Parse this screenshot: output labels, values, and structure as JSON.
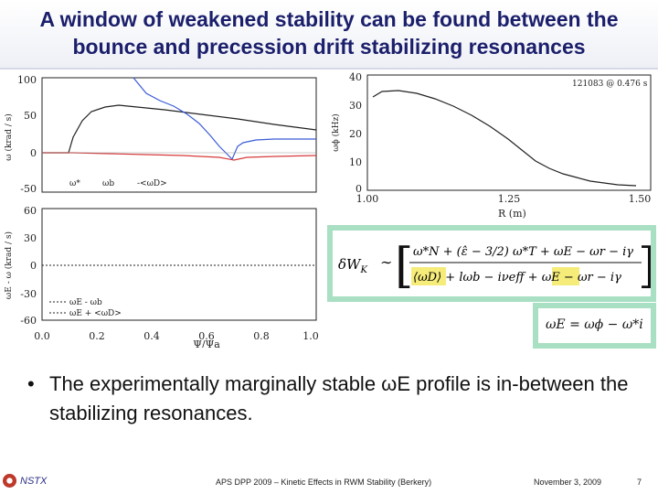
{
  "title": {
    "line1": "A window of weakened stability can be found between the",
    "line2": "bounce and precession drift stabilizing resonances"
  },
  "figure_left": {
    "top_plot": {
      "ylabel": "ω (krad / s)",
      "yticks": [
        "100",
        "50",
        "0",
        "-50"
      ],
      "legend": [
        "ω*",
        "ωb",
        "-<ωD>"
      ]
    },
    "bottom_plot": {
      "ylabel": "ωE - ω (krad / s)",
      "yticks": [
        "60",
        "30",
        "0",
        "-30",
        "-60"
      ],
      "legend": [
        "ωE - ωb",
        "ωE + <ωD>"
      ],
      "xticks": [
        "0.0",
        "0.2",
        "0.4",
        "0.6",
        "0.8",
        "1.0"
      ],
      "xlabel": "Ψ/Ψa"
    }
  },
  "figure_right": {
    "shot_label": "121083 @ 0.476 s",
    "ylabel": "ωϕ (kHz)",
    "yticks": [
      "40",
      "30",
      "20",
      "10",
      "0"
    ],
    "xticks": [
      "1.00",
      "1.25",
      "1.50"
    ],
    "xlabel": "R (m)"
  },
  "equation_main": {
    "lhs": "δW",
    "lhs_sub": "K",
    "sim": "∼",
    "row1": "ω*N + (ε̂ − 3/2) ω*T + ωE − ωr − iγ",
    "row2_a": "⟨ωD⟩",
    "row2_b": " + lωb − iνeff + ",
    "row2_c": "ωE",
    "row2_d": " − ωr − iγ"
  },
  "equation_omegaE": {
    "text": "ωE = ωϕ − ω*i"
  },
  "bullet": {
    "marker": "•",
    "text": "The experimentally marginally stable ωE profile is in-between the stabilizing resonances."
  },
  "footer": {
    "logo_text": "NSTX",
    "conference": "APS DPP 2009 – Kinetic Effects in RWM Stability (Berkery)",
    "date": "November 3, 2009",
    "page": "7"
  },
  "colors": {
    "title": "#1b1f6b",
    "highlight": "#f6ec7a",
    "eq_frame": "#a9dfc2",
    "curve_omega_star": "#222222",
    "curve_omega_b": "#3b5bd6",
    "curve_omega_D": "#d63b3b"
  }
}
